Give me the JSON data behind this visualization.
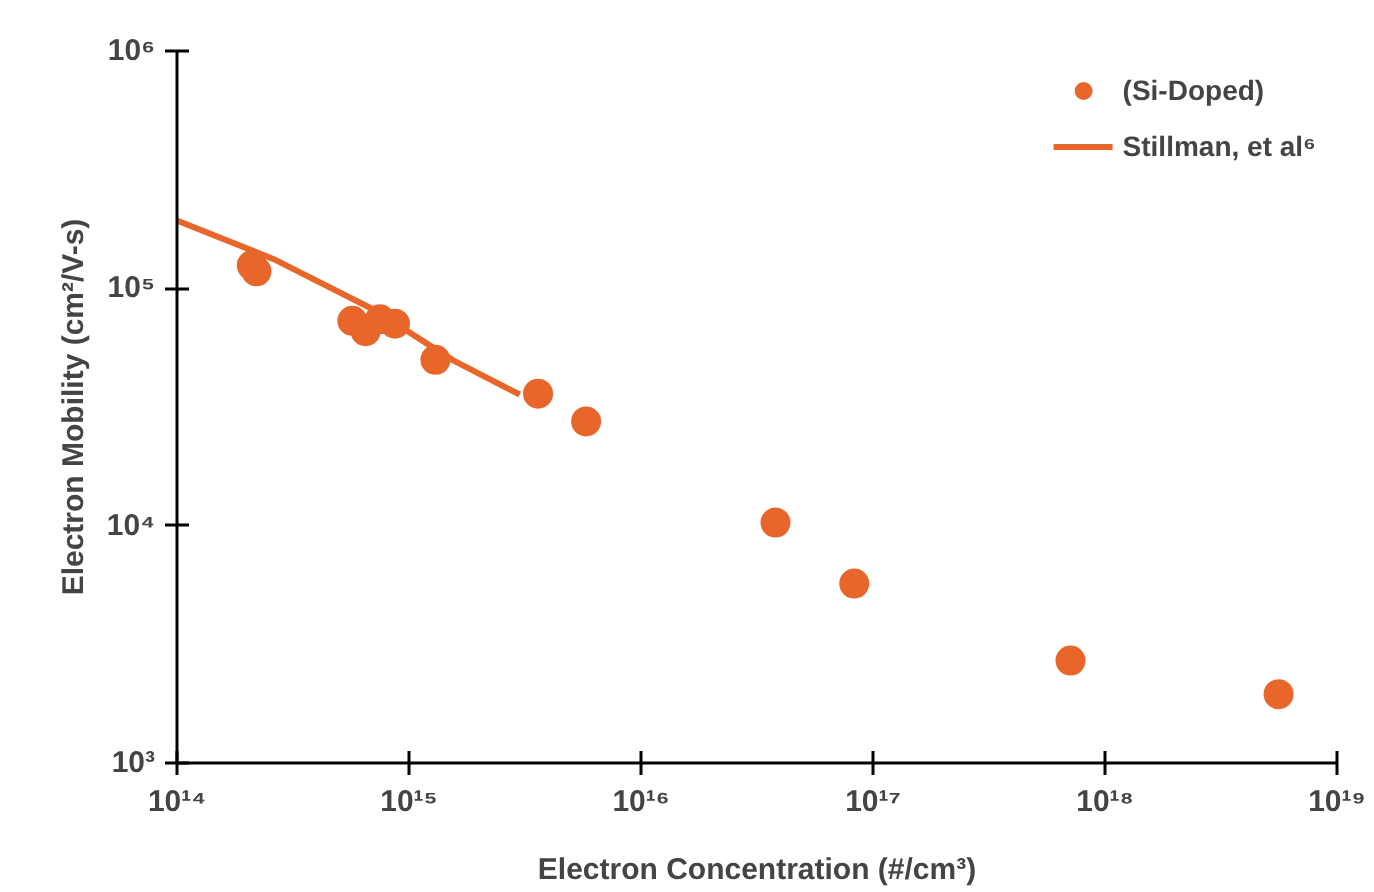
{
  "chart_data": {
    "type": "scatter",
    "xlabel": "Electron Concentration (#/cm³)",
    "ylabel": "Electron Mobility (cm²/V-s)",
    "log": "xy",
    "xlim": [
      100000000000000.0,
      1e+19
    ],
    "ylim": [
      1000.0,
      1000000.0
    ],
    "xticks": [
      {
        "value": 100000000000000.0,
        "label": "10¹⁴"
      },
      {
        "value": 1000000000000000.0,
        "label": "10¹⁵"
      },
      {
        "value": 1e+16,
        "label": "10¹⁶"
      },
      {
        "value": 1e+17,
        "label": "10¹⁷"
      },
      {
        "value": 1e+18,
        "label": "10¹⁸"
      },
      {
        "value": 1e+19,
        "label": "10¹⁹"
      }
    ],
    "yticks": [
      {
        "value": 1000.0,
        "label": "10³"
      },
      {
        "value": 10000.0,
        "label": "10⁴"
      },
      {
        "value": 100000.0,
        "label": "10⁵"
      },
      {
        "value": 1000000.0,
        "label": "10⁶"
      }
    ],
    "grid": false,
    "legend": "top right",
    "series": [
      {
        "name": "(Si-Doped)",
        "marker": "circle",
        "color": "#e8662a",
        "x": [
          220000000000000.0,
          210000000000000.0,
          570000000000000.0,
          650000000000000.0,
          750000000000000.0,
          870000000000000.0,
          1300000000000000.0,
          3600000000000000.0,
          5800000000000000.0,
          3.8e+16,
          8.3e+16,
          7.1e+17,
          5.6e+18
        ],
        "values": [
          118000.0,
          125000.0,
          73000.0,
          66000.0,
          74000.0,
          71000.0,
          50000.0,
          36000.0,
          27500.0,
          10300.0,
          5700.0,
          2700.0,
          1950.0
        ]
      },
      {
        "name": "Stillman, et al⁶",
        "type": "line",
        "color": "#e8662a",
        "line_style": "solid",
        "x": [
          100000000000000.0,
          260000000000000.0,
          710000000000000.0,
          1550000000000000.0,
          3000000000000000.0
        ],
        "values": [
          193000.0,
          133000.0,
          81000.0,
          49700.0,
          35700.0
        ]
      }
    ]
  }
}
